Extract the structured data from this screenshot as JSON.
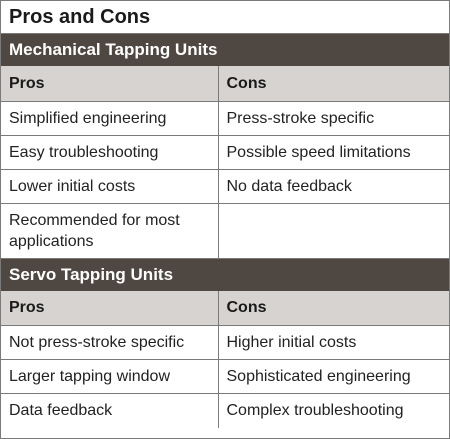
{
  "title": "Pros and Cons",
  "colors": {
    "section_header_bg": "#4f4842",
    "column_header_bg": "#d6d3d0",
    "border": "#7a7a7a"
  },
  "sections": [
    {
      "title": "Mechanical Tapping Units",
      "columns": [
        "Pros",
        "Cons"
      ],
      "rows": [
        [
          "Simplified engineering",
          "Press-stroke specific"
        ],
        [
          "Easy troubleshooting",
          "Possible speed limitations"
        ],
        [
          "Lower initial costs",
          "No data feedback"
        ],
        [
          "Recommended for most applications",
          ""
        ]
      ]
    },
    {
      "title": "Servo Tapping Units",
      "columns": [
        "Pros",
        "Cons"
      ],
      "rows": [
        [
          "Not press-stroke specific",
          "Higher initial costs"
        ],
        [
          "Larger tapping window",
          "Sophisticated engineering"
        ],
        [
          "Data feedback",
          "Complex troubleshooting"
        ]
      ]
    }
  ]
}
